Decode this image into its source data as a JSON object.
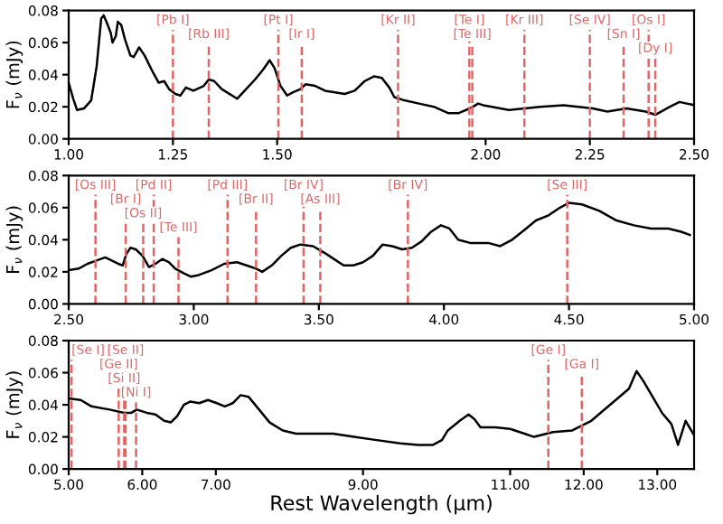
{
  "chart_data": [
    {
      "type": "line",
      "ylabel": "F$_{ν}$ (mJy)",
      "xlim": [
        1.0,
        2.5
      ],
      "xticks": [
        {
          "value": 1.0,
          "label": "1.00"
        },
        {
          "value": 1.25,
          "label": "1.25"
        },
        {
          "value": 1.5,
          "label": "1.50"
        },
        {
          "value": 2.0,
          "label": "2.00"
        },
        {
          "value": 2.25,
          "label": "2.25"
        },
        {
          "value": 2.5,
          "label": "2.50"
        }
      ],
      "ylim": [
        0,
        0.08
      ],
      "yticks": [
        {
          "value": 0,
          "label": "0.00"
        },
        {
          "value": 0.02,
          "label": "0.02"
        },
        {
          "value": 0.04,
          "label": "0.04"
        },
        {
          "value": 0.06,
          "label": "0.06"
        },
        {
          "value": 0.08,
          "label": "0.08"
        }
      ],
      "grid": false,
      "legend": false,
      "series": [
        {
          "color": "#000000",
          "x": [
            1.0,
            1.011,
            1.02,
            1.037,
            1.054,
            1.067,
            1.078,
            1.084,
            1.092,
            1.101,
            1.105,
            1.113,
            1.118,
            1.126,
            1.135,
            1.148,
            1.156,
            1.169,
            1.182,
            1.199,
            1.216,
            1.229,
            1.241,
            1.256,
            1.268,
            1.281,
            1.299,
            1.324,
            1.336,
            1.349,
            1.367,
            1.392,
            1.404,
            1.422,
            1.447,
            1.466,
            1.482,
            1.494,
            1.508,
            1.524,
            1.538,
            1.556,
            1.568,
            1.591,
            1.615,
            1.639,
            1.662,
            1.686,
            1.71,
            1.733,
            1.751,
            1.769,
            1.781,
            1.805,
            1.84,
            1.876,
            1.911,
            1.935,
            1.953,
            1.97,
            1.982,
            1.994,
            2.056,
            2.131,
            2.187,
            2.257,
            2.292,
            2.338,
            2.384,
            2.407,
            2.442,
            2.465,
            2.5
          ],
          "values": [
            0.035,
            0.025,
            0.018,
            0.019,
            0.024,
            0.045,
            0.075,
            0.077,
            0.072,
            0.066,
            0.06,
            0.064,
            0.073,
            0.071,
            0.062,
            0.052,
            0.051,
            0.057,
            0.052,
            0.043,
            0.035,
            0.036,
            0.031,
            0.028,
            0.027,
            0.032,
            0.03,
            0.033,
            0.037,
            0.036,
            0.031,
            0.027,
            0.025,
            0.03,
            0.037,
            0.043,
            0.049,
            0.044,
            0.033,
            0.027,
            0.029,
            0.031,
            0.034,
            0.033,
            0.03,
            0.029,
            0.028,
            0.03,
            0.036,
            0.039,
            0.038,
            0.032,
            0.026,
            0.024,
            0.022,
            0.02,
            0.016,
            0.016,
            0.018,
            0.02,
            0.022,
            0.021,
            0.018,
            0.02,
            0.021,
            0.019,
            0.017,
            0.019,
            0.017,
            0.015,
            0.02,
            0.023,
            0.021
          ]
        }
      ],
      "ref_lines": [
        {
          "axis": "x",
          "value": 1.25,
          "label": "[Pb I]",
          "color": "#e06666",
          "line_style": "dashed"
        },
        {
          "axis": "x",
          "value": 1.336,
          "label": "[Rb III]",
          "color": "#e06666",
          "line_style": "dashed"
        },
        {
          "axis": "x",
          "value": 1.503,
          "label": "[Pt I]",
          "color": "#e06666",
          "line_style": "dashed"
        },
        {
          "axis": "x",
          "value": 1.559,
          "label": "[Ir I]",
          "color": "#e06666",
          "line_style": "dashed"
        },
        {
          "axis": "x",
          "value": 1.79,
          "label": "[Kr II]",
          "color": "#e06666",
          "line_style": "dashed"
        },
        {
          "axis": "x",
          "value": 1.961,
          "label": "[Te I]",
          "color": "#e06666",
          "line_style": "dashed"
        },
        {
          "axis": "x",
          "value": 1.968,
          "label": "[Te III]",
          "color": "#e06666",
          "line_style": "dashed"
        },
        {
          "axis": "x",
          "value": 2.093,
          "label": "[Kr III]",
          "color": "#e06666",
          "line_style": "dashed"
        },
        {
          "axis": "x",
          "value": 2.25,
          "label": "[Se IV]",
          "color": "#e06666",
          "line_style": "dashed"
        },
        {
          "axis": "x",
          "value": 2.331,
          "label": "[Sn I]",
          "color": "#e06666",
          "line_style": "dashed"
        },
        {
          "axis": "x",
          "value": 2.391,
          "label": "[Os I]",
          "color": "#e06666",
          "line_style": "dashed"
        },
        {
          "axis": "x",
          "value": 2.407,
          "label": "[Dy I]",
          "color": "#e06666",
          "line_style": "dashed"
        }
      ]
    },
    {
      "type": "line",
      "ylabel": "F$_{ν}$ (mJy)",
      "xlim": [
        2.5,
        5.0
      ],
      "xticks": [
        {
          "value": 2.5,
          "label": "2.50"
        },
        {
          "value": 3.0,
          "label": "3.00"
        },
        {
          "value": 3.5,
          "label": "3.50"
        },
        {
          "value": 4.0,
          "label": "4.00"
        },
        {
          "value": 4.5,
          "label": "4.50"
        },
        {
          "value": 5.0,
          "label": "5.00"
        }
      ],
      "ylim": [
        0,
        0.08
      ],
      "yticks": [
        {
          "value": 0,
          "label": "0.00"
        },
        {
          "value": 0.02,
          "label": "0.02"
        },
        {
          "value": 0.04,
          "label": "0.04"
        },
        {
          "value": 0.06,
          "label": "0.06"
        },
        {
          "value": 0.08,
          "label": "0.08"
        }
      ],
      "grid": false,
      "legend": false,
      "series": [
        {
          "color": "#000000",
          "x": [
            2.5,
            2.54,
            2.575,
            2.611,
            2.646,
            2.672,
            2.698,
            2.716,
            2.73,
            2.747,
            2.768,
            2.795,
            2.821,
            2.847,
            2.874,
            2.9,
            2.926,
            2.961,
            2.988,
            3.02,
            3.071,
            3.122,
            3.173,
            3.211,
            3.249,
            3.274,
            3.312,
            3.35,
            3.388,
            3.426,
            3.477,
            3.521,
            3.56,
            3.599,
            3.638,
            3.677,
            3.716,
            3.755,
            3.794,
            3.833,
            3.872,
            3.911,
            3.949,
            3.988,
            4.022,
            4.057,
            4.105,
            4.177,
            4.225,
            4.273,
            4.321,
            4.368,
            4.416,
            4.464,
            4.5,
            4.552,
            4.621,
            4.69,
            4.759,
            4.828,
            4.897,
            4.948,
            4.983
          ],
          "values": [
            0.021,
            0.022,
            0.025,
            0.027,
            0.029,
            0.027,
            0.025,
            0.024,
            0.031,
            0.035,
            0.034,
            0.03,
            0.023,
            0.025,
            0.028,
            0.026,
            0.022,
            0.019,
            0.017,
            0.018,
            0.021,
            0.025,
            0.026,
            0.024,
            0.022,
            0.02,
            0.024,
            0.03,
            0.035,
            0.037,
            0.036,
            0.032,
            0.028,
            0.024,
            0.024,
            0.026,
            0.03,
            0.037,
            0.036,
            0.034,
            0.035,
            0.039,
            0.045,
            0.049,
            0.047,
            0.04,
            0.038,
            0.038,
            0.036,
            0.04,
            0.046,
            0.052,
            0.055,
            0.06,
            0.063,
            0.062,
            0.058,
            0.052,
            0.049,
            0.047,
            0.047,
            0.045,
            0.043
          ]
        }
      ],
      "ref_lines": [
        {
          "axis": "x",
          "value": 2.607,
          "label": "[Os III]",
          "color": "#e06666",
          "line_style": "dashed"
        },
        {
          "axis": "x",
          "value": 2.728,
          "label": "[Br I]",
          "color": "#e06666",
          "line_style": "dashed"
        },
        {
          "axis": "x",
          "value": 2.798,
          "label": "[Os II]",
          "color": "#e06666",
          "line_style": "dashed"
        },
        {
          "axis": "x",
          "value": 2.84,
          "label": "[Pd II]",
          "color": "#e06666",
          "line_style": "dashed"
        },
        {
          "axis": "x",
          "value": 2.939,
          "label": "[Te III]",
          "color": "#e06666",
          "line_style": "dashed"
        },
        {
          "axis": "x",
          "value": 3.135,
          "label": "[Pd III]",
          "color": "#e06666",
          "line_style": "dashed"
        },
        {
          "axis": "x",
          "value": 3.249,
          "label": "[Br II]",
          "color": "#e06666",
          "line_style": "dashed"
        },
        {
          "axis": "x",
          "value": 3.439,
          "label": "[Br IV]",
          "color": "#e06666",
          "line_style": "dashed"
        },
        {
          "axis": "x",
          "value": 3.506,
          "label": "[As III]",
          "color": "#e06666",
          "line_style": "dashed"
        },
        {
          "axis": "x",
          "value": 3.856,
          "label": "[Br IV]",
          "color": "#e06666",
          "line_style": "dashed"
        },
        {
          "axis": "x",
          "value": 4.493,
          "label": "[Se III]",
          "color": "#e06666",
          "line_style": "dashed"
        }
      ]
    },
    {
      "type": "line",
      "ylabel": "F$_{ν}$ (mJy)",
      "xlabel": "Rest Wavelength (μm)",
      "xlim": [
        5.0,
        13.5
      ],
      "xticks": [
        {
          "value": 5.0,
          "label": "5.00"
        },
        {
          "value": 6.0,
          "label": "6.00"
        },
        {
          "value": 7.0,
          "label": "7.00"
        },
        {
          "value": 9.0,
          "label": "9.00"
        },
        {
          "value": 11.0,
          "label": "11.00"
        },
        {
          "value": 12.0,
          "label": "12.00"
        },
        {
          "value": 13.0,
          "label": "13.00"
        }
      ],
      "ylim": [
        0,
        0.08
      ],
      "yticks": [
        {
          "value": 0,
          "label": "0.00"
        },
        {
          "value": 0.02,
          "label": "0.02"
        },
        {
          "value": 0.04,
          "label": "0.04"
        },
        {
          "value": 0.06,
          "label": "0.06"
        },
        {
          "value": 0.08,
          "label": "0.08"
        }
      ],
      "grid": false,
      "legend": false,
      "series": [
        {
          "color": "#000000",
          "x": [
            5.0,
            5.163,
            5.31,
            5.557,
            5.754,
            5.852,
            5.926,
            6.06,
            6.179,
            6.298,
            6.387,
            6.476,
            6.565,
            6.655,
            6.774,
            6.893,
            7.014,
            7.122,
            7.229,
            7.337,
            7.444,
            7.588,
            7.731,
            7.91,
            8.09,
            8.305,
            8.591,
            8.735,
            8.878,
            9.185,
            9.508,
            9.75,
            9.952,
            10.073,
            10.153,
            10.315,
            10.435,
            10.516,
            10.597,
            10.798,
            11.0,
            11.195,
            11.325,
            11.584,
            11.844,
            12.103,
            12.359,
            12.615,
            12.718,
            12.808,
            12.936,
            13.064,
            13.192,
            13.282,
            13.385,
            13.487
          ],
          "values": [
            0.044,
            0.043,
            0.039,
            0.037,
            0.035,
            0.035,
            0.037,
            0.035,
            0.034,
            0.03,
            0.029,
            0.033,
            0.04,
            0.042,
            0.041,
            0.043,
            0.041,
            0.039,
            0.041,
            0.046,
            0.045,
            0.037,
            0.029,
            0.024,
            0.022,
            0.022,
            0.022,
            0.021,
            0.02,
            0.018,
            0.016,
            0.015,
            0.015,
            0.018,
            0.024,
            0.03,
            0.034,
            0.031,
            0.026,
            0.026,
            0.025,
            0.022,
            0.02,
            0.023,
            0.024,
            0.03,
            0.04,
            0.05,
            0.061,
            0.055,
            0.045,
            0.035,
            0.028,
            0.015,
            0.03,
            0.022
          ]
        }
      ],
      "ref_lines": [
        {
          "axis": "x",
          "value": 5.039,
          "label": "[Se I]",
          "color": "#e06666",
          "line_style": "dashed"
        },
        {
          "axis": "x",
          "value": 5.68,
          "label": "[Ge II]",
          "color": "#e06666",
          "line_style": "dashed"
        },
        {
          "axis": "x",
          "value": 5.754,
          "label": "[Si II]",
          "color": "#e06666",
          "line_style": "dashed"
        },
        {
          "axis": "x",
          "value": 5.773,
          "label": "[Se II]",
          "color": "#e06666",
          "line_style": "dashed"
        },
        {
          "axis": "x",
          "value": 5.916,
          "label": "[Ni I]",
          "color": "#e06666",
          "line_style": "dashed"
        },
        {
          "axis": "x",
          "value": 11.519,
          "label": "[Ge I]",
          "color": "#e06666",
          "line_style": "dashed"
        },
        {
          "axis": "x",
          "value": 11.974,
          "label": "[Ga I]",
          "color": "#e06666",
          "line_style": "dashed"
        }
      ]
    }
  ]
}
